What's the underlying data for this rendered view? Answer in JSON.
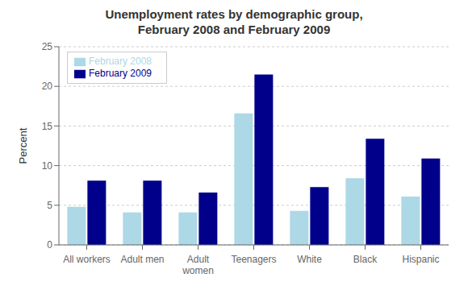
{
  "chart_data": {
    "type": "bar",
    "title": "Unemployment rates by demographic group,\nFebruary 2008 and February 2009",
    "categories": [
      "All workers",
      "Adult men",
      "Adult\nwomen",
      "Teenagers",
      "White",
      "Black",
      "Hispanic"
    ],
    "series": [
      {
        "name": "February 2008",
        "color": "#add8e6",
        "values": [
          4.8,
          4.1,
          4.1,
          16.6,
          4.3,
          8.4,
          6.1
        ]
      },
      {
        "name": "February 2009",
        "color": "#00008b",
        "values": [
          8.1,
          8.1,
          6.6,
          21.5,
          7.3,
          13.4,
          10.9
        ]
      }
    ],
    "ylabel": "Percent",
    "ylim": [
      0,
      25
    ],
    "yticks": [
      0,
      5,
      10,
      15,
      20,
      25
    ],
    "grid": true,
    "legend": "upper left"
  }
}
